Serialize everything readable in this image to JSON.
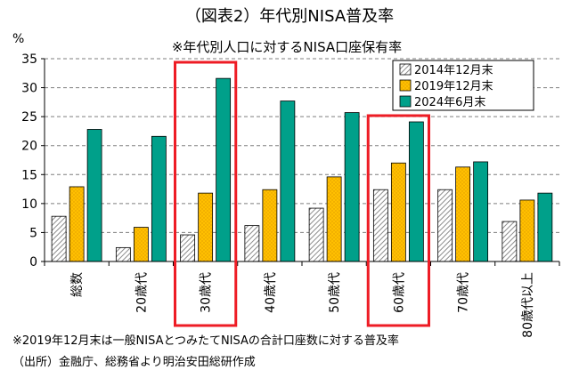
{
  "title": "（図表2）年代別NISA普及率",
  "subtitle": "※年代別人口に対するNISA口座保有率",
  "unit_label": "%",
  "footnote": "※2019年12月末は一般NISAとつみたてNISAの合計口座数に対する普及率",
  "source": "（出所）金融庁、総務省より明治安田総研作成",
  "colors": {
    "s2014": "#d9d9d9",
    "s2019": "#ffc000",
    "s2024": "#00a08a",
    "highlight": "#ee1c25",
    "grid": "#7f7f7f"
  },
  "chart_data": {
    "type": "bar",
    "categories": [
      "総数",
      "20歳代",
      "30歳代",
      "40歳代",
      "50歳代",
      "60歳代",
      "70歳代",
      "80歳代以上"
    ],
    "series": [
      {
        "name": "2014年12月末",
        "values": [
          7.8,
          2.4,
          4.6,
          6.2,
          9.2,
          12.4,
          12.4,
          6.9
        ]
      },
      {
        "name": "2019年12月末",
        "values": [
          12.9,
          5.9,
          11.8,
          12.4,
          14.6,
          17.0,
          16.3,
          10.6
        ]
      },
      {
        "name": "2024年6月末",
        "values": [
          22.8,
          21.6,
          31.6,
          27.7,
          25.7,
          24.1,
          17.2,
          11.8
        ]
      }
    ],
    "y_ticks": [
      "0",
      "5",
      "10",
      "15",
      "20",
      "25",
      "30",
      "35"
    ],
    "ylim": [
      0,
      35
    ],
    "grid": true,
    "legend_position": "top-right",
    "highlighted_categories": [
      "30歳代",
      "60歳代"
    ]
  }
}
